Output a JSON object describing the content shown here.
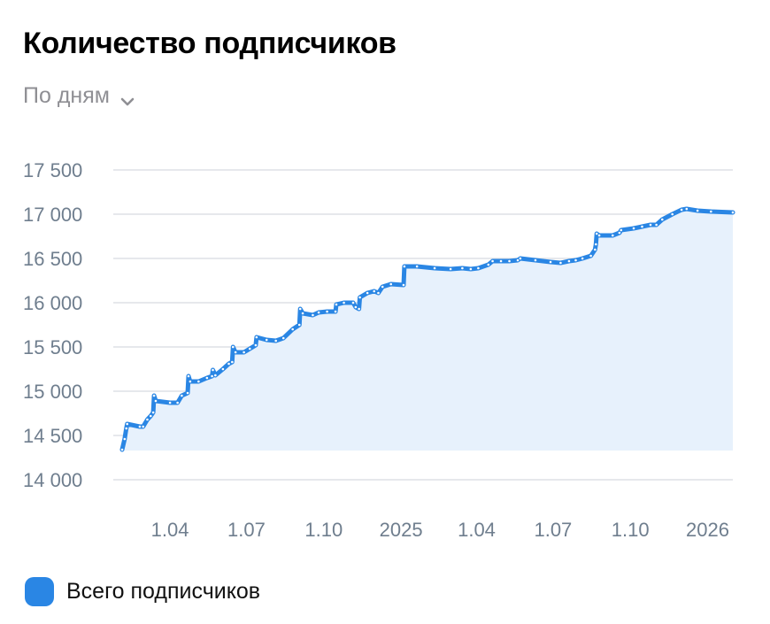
{
  "header": {
    "title": "Количество подписчиков"
  },
  "period_selector": {
    "label": "По дням",
    "icon": "chevron-down-icon"
  },
  "colors": {
    "line": "#2a86e4",
    "area": "#e7f1fc",
    "grid": "#dde1e6",
    "axis_text": "#6f7e8e"
  },
  "chart_data": {
    "type": "area",
    "title": "Количество подписчиков",
    "xlabel": "",
    "ylabel": "",
    "ylim": [
      14000,
      17500
    ],
    "yticks": [
      14000,
      14500,
      15000,
      15500,
      16000,
      16500,
      17000,
      17500
    ],
    "ytick_labels": [
      "14 000",
      "14 500",
      "15 000",
      "15 500",
      "16 000",
      "16 500",
      "17 000",
      "17 500"
    ],
    "x_range": [
      "2024-02-04",
      "2026-01-31"
    ],
    "xticks": [
      {
        "date": "2024-04-01",
        "label": "1.04"
      },
      {
        "date": "2024-07-01",
        "label": "1.07"
      },
      {
        "date": "2024-10-01",
        "label": "1.10"
      },
      {
        "date": "2025-01-01",
        "label": "2025"
      },
      {
        "date": "2025-04-01",
        "label": "1.04"
      },
      {
        "date": "2025-07-01",
        "label": "1.07"
      },
      {
        "date": "2025-10-01",
        "label": "1.10"
      },
      {
        "date": "2026-01-01",
        "label": "2026"
      }
    ],
    "grid": true,
    "legend_position": "bottom-left",
    "series": [
      {
        "name": "Всего подписчиков",
        "points": [
          [
            "2024-02-04",
            14340
          ],
          [
            "2024-02-07",
            14460
          ],
          [
            "2024-02-09",
            14580
          ],
          [
            "2024-02-10",
            14630
          ],
          [
            "2024-02-25",
            14600
          ],
          [
            "2024-02-29",
            14600
          ],
          [
            "2024-03-05",
            14680
          ],
          [
            "2024-03-09",
            14720
          ],
          [
            "2024-03-12",
            14760
          ],
          [
            "2024-03-13",
            14950
          ],
          [
            "2024-03-15",
            14890
          ],
          [
            "2024-04-01",
            14870
          ],
          [
            "2024-04-10",
            14870
          ],
          [
            "2024-04-15",
            14950
          ],
          [
            "2024-04-22",
            14980
          ],
          [
            "2024-04-23",
            15170
          ],
          [
            "2024-04-25",
            15110
          ],
          [
            "2024-05-05",
            15110
          ],
          [
            "2024-05-15",
            15150
          ],
          [
            "2024-05-21",
            15170
          ],
          [
            "2024-05-22",
            15240
          ],
          [
            "2024-05-25",
            15180
          ],
          [
            "2024-06-03",
            15250
          ],
          [
            "2024-06-10",
            15310
          ],
          [
            "2024-06-14",
            15330
          ],
          [
            "2024-06-15",
            15500
          ],
          [
            "2024-06-18",
            15440
          ],
          [
            "2024-06-28",
            15440
          ],
          [
            "2024-07-05",
            15480
          ],
          [
            "2024-07-12",
            15520
          ],
          [
            "2024-07-13",
            15610
          ],
          [
            "2024-07-25",
            15580
          ],
          [
            "2024-08-05",
            15570
          ],
          [
            "2024-08-14",
            15600
          ],
          [
            "2024-08-25",
            15700
          ],
          [
            "2024-09-02",
            15750
          ],
          [
            "2024-09-03",
            15930
          ],
          [
            "2024-09-06",
            15880
          ],
          [
            "2024-09-18",
            15860
          ],
          [
            "2024-09-25",
            15890
          ],
          [
            "2024-10-05",
            15900
          ],
          [
            "2024-10-15",
            15900
          ],
          [
            "2024-10-16",
            15980
          ],
          [
            "2024-10-25",
            16000
          ],
          [
            "2024-11-05",
            16000
          ],
          [
            "2024-11-08",
            15950
          ],
          [
            "2024-11-12",
            15930
          ],
          [
            "2024-11-13",
            16060
          ],
          [
            "2024-11-22",
            16110
          ],
          [
            "2024-11-30",
            16130
          ],
          [
            "2024-12-05",
            16110
          ],
          [
            "2024-12-10",
            16180
          ],
          [
            "2024-12-20",
            16210
          ],
          [
            "2025-01-04",
            16200
          ],
          [
            "2025-01-05",
            16410
          ],
          [
            "2025-01-20",
            16410
          ],
          [
            "2025-02-10",
            16390
          ],
          [
            "2025-03-01",
            16380
          ],
          [
            "2025-03-15",
            16390
          ],
          [
            "2025-03-25",
            16380
          ],
          [
            "2025-04-03",
            16390
          ],
          [
            "2025-04-15",
            16430
          ],
          [
            "2025-04-20",
            16470
          ],
          [
            "2025-04-30",
            16470
          ],
          [
            "2025-05-10",
            16470
          ],
          [
            "2025-05-20",
            16480
          ],
          [
            "2025-05-23",
            16500
          ],
          [
            "2025-06-10",
            16480
          ],
          [
            "2025-06-28",
            16460
          ],
          [
            "2025-07-10",
            16450
          ],
          [
            "2025-07-20",
            16470
          ],
          [
            "2025-07-28",
            16480
          ],
          [
            "2025-08-05",
            16500
          ],
          [
            "2025-08-15",
            16530
          ],
          [
            "2025-08-20",
            16600
          ],
          [
            "2025-08-21",
            16660
          ],
          [
            "2025-08-22",
            16780
          ],
          [
            "2025-08-25",
            16760
          ],
          [
            "2025-09-10",
            16760
          ],
          [
            "2025-09-18",
            16790
          ],
          [
            "2025-09-20",
            16820
          ],
          [
            "2025-10-05",
            16840
          ],
          [
            "2025-10-15",
            16860
          ],
          [
            "2025-10-25",
            16880
          ],
          [
            "2025-11-01",
            16880
          ],
          [
            "2025-11-08",
            16940
          ],
          [
            "2025-11-20",
            17000
          ],
          [
            "2025-12-01",
            17050
          ],
          [
            "2025-12-07",
            17060
          ],
          [
            "2025-12-20",
            17040
          ],
          [
            "2026-01-05",
            17030
          ],
          [
            "2026-01-31",
            17020
          ]
        ]
      }
    ]
  }
}
